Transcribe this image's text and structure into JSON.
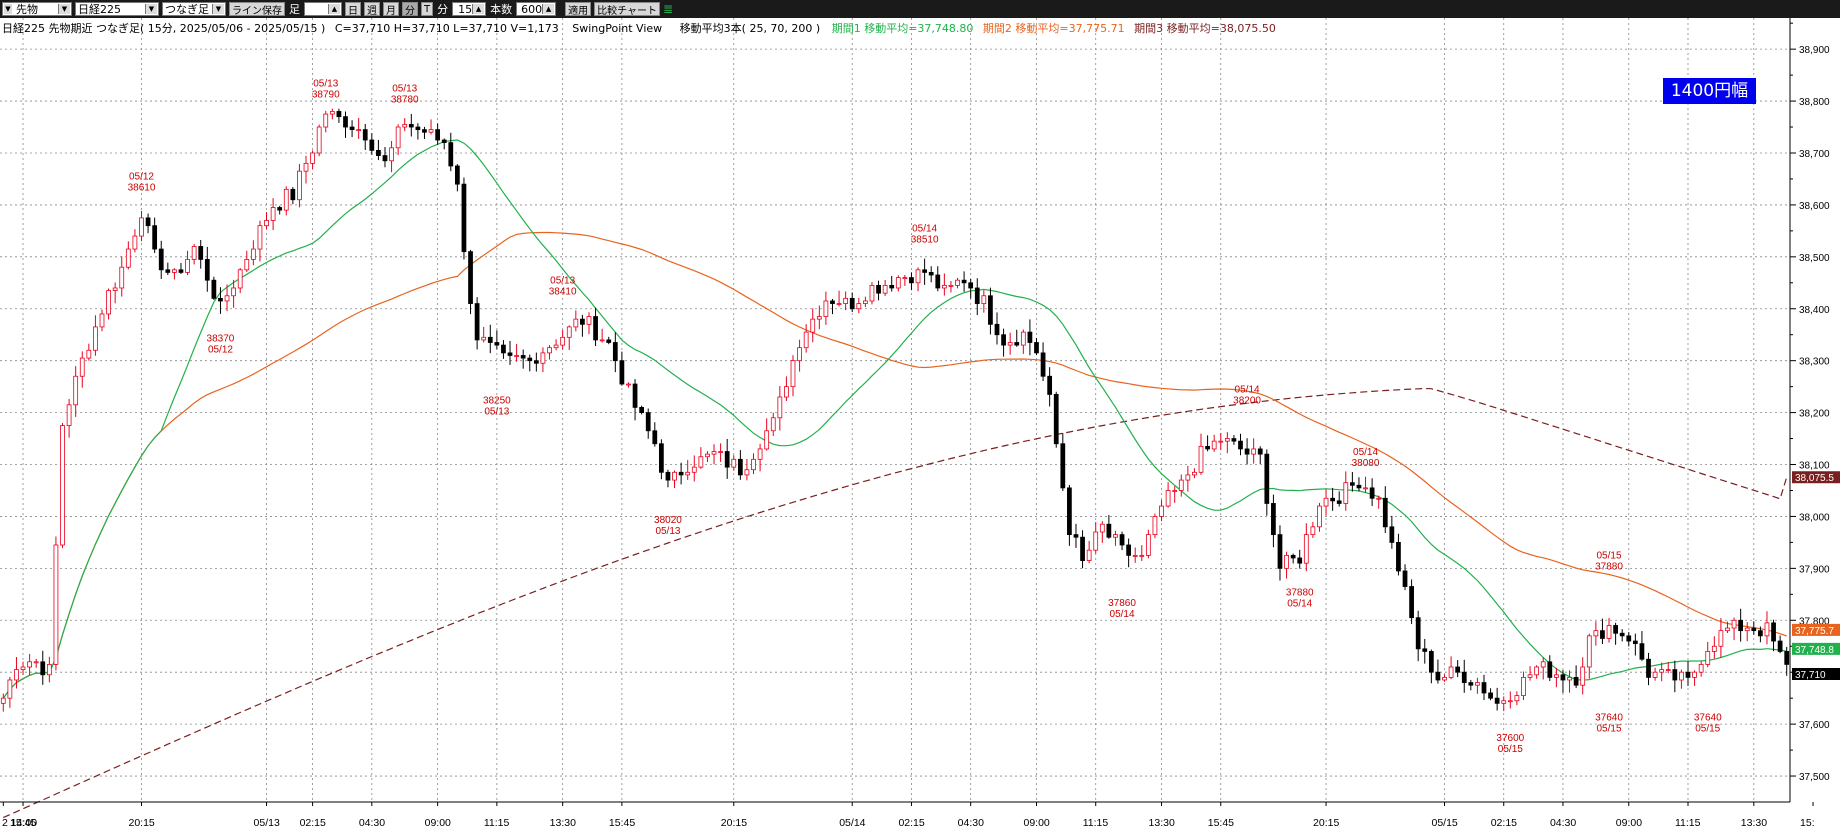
{
  "toolbar": {
    "market_select": "先物",
    "index_select": "日経225",
    "chart_type_select": "つなぎ足",
    "save_line_button": "ライン保存",
    "foot_label": "足",
    "day_button": "日",
    "week_button": "週",
    "month_button": "月",
    "minute_button": "分",
    "tick_button": "T",
    "interval_value": "15",
    "minute_label": "分",
    "count_label": "本数",
    "count_value": "600",
    "apply_button": "適用",
    "compare_button": "比較チャート"
  },
  "info": {
    "instrument": "日経225 先物期近 つなぎ足( 15分, 2025/05/06 - 2025/05/15 )",
    "ohlcv": "C=37,710 H=37,710 L=37,710 V=1,173",
    "view_name": "SwingPoint View",
    "ma_header": "移動平均3本( 25, 70, 200 )",
    "ma1": "期間1 移動平均=37,748.80",
    "ma2": "期間2 移動平均=37,775.71",
    "ma3": "期間3 移動平均=38,075.50"
  },
  "range_badge": "1400円幅",
  "chart_data": {
    "type": "candlestick",
    "yrange": [
      37450,
      38960
    ],
    "y_ticks": [
      37500,
      37600,
      37700,
      37800,
      37900,
      38000,
      38100,
      38200,
      38300,
      38400,
      38500,
      38600,
      38700,
      38800,
      38900
    ],
    "y_tick_labels": [
      "37,500",
      "37,600",
      "37,700",
      "37,800",
      "37,900",
      "38,000",
      "38,100",
      "38,200",
      "38,300",
      "38,400",
      "38,500",
      "38,600",
      "38,700",
      "38,800",
      "38,900"
    ],
    "x_labels": [
      {
        "i": 0,
        "text": "2  14:00"
      },
      {
        "i": 3,
        "text": "15:45"
      },
      {
        "i": 21,
        "text": "20:15"
      },
      {
        "i": 40,
        "text": "05/13"
      },
      {
        "i": 47,
        "text": "02:15"
      },
      {
        "i": 56,
        "text": "04:30"
      },
      {
        "i": 66,
        "text": "09:00"
      },
      {
        "i": 75,
        "text": "11:15"
      },
      {
        "i": 85,
        "text": "13:30"
      },
      {
        "i": 94,
        "text": "15:45"
      },
      {
        "i": 111,
        "text": "20:15"
      },
      {
        "i": 129,
        "text": "05/14"
      },
      {
        "i": 138,
        "text": "02:15"
      },
      {
        "i": 147,
        "text": "04:30"
      },
      {
        "i": 157,
        "text": "09:00"
      },
      {
        "i": 166,
        "text": "11:15"
      },
      {
        "i": 176,
        "text": "13:30"
      },
      {
        "i": 185,
        "text": "15:45"
      },
      {
        "i": 201,
        "text": "20:15"
      },
      {
        "i": 219,
        "text": "05/15"
      },
      {
        "i": 228,
        "text": "02:15"
      },
      {
        "i": 237,
        "text": "04:30"
      },
      {
        "i": 247,
        "text": "09:00"
      },
      {
        "i": 256,
        "text": "11:15"
      },
      {
        "i": 266,
        "text": "13:30"
      },
      {
        "i": 275,
        "text": "15:"
      }
    ],
    "anchors": [
      [
        0,
        37650
      ],
      [
        2,
        37720
      ],
      [
        5,
        37720
      ],
      [
        7,
        37700
      ],
      [
        9,
        38180
      ],
      [
        12,
        38300
      ],
      [
        15,
        38400
      ],
      [
        18,
        38480
      ],
      [
        21,
        38590
      ],
      [
        23,
        38500
      ],
      [
        26,
        38460
      ],
      [
        29,
        38520
      ],
      [
        33,
        38400
      ],
      [
        37,
        38500
      ],
      [
        41,
        38600
      ],
      [
        44,
        38620
      ],
      [
        47,
        38710
      ],
      [
        49,
        38780
      ],
      [
        52,
        38760
      ],
      [
        55,
        38740
      ],
      [
        58,
        38680
      ],
      [
        61,
        38760
      ],
      [
        64,
        38740
      ],
      [
        67,
        38720
      ],
      [
        69,
        38650
      ],
      [
        70,
        38500
      ],
      [
        72,
        38350
      ],
      [
        76,
        38300
      ],
      [
        80,
        38300
      ],
      [
        84,
        38340
      ],
      [
        88,
        38380
      ],
      [
        92,
        38330
      ],
      [
        96,
        38210
      ],
      [
        99,
        38140
      ],
      [
        101,
        38060
      ],
      [
        104,
        38100
      ],
      [
        108,
        38120
      ],
      [
        112,
        38090
      ],
      [
        117,
        38180
      ],
      [
        121,
        38340
      ],
      [
        125,
        38420
      ],
      [
        129,
        38410
      ],
      [
        132,
        38440
      ],
      [
        136,
        38460
      ],
      [
        140,
        38470
      ],
      [
        143,
        38430
      ],
      [
        146,
        38460
      ],
      [
        149,
        38410
      ],
      [
        152,
        38340
      ],
      [
        155,
        38350
      ],
      [
        157,
        38320
      ],
      [
        159,
        38220
      ],
      [
        162,
        37980
      ],
      [
        164,
        37910
      ],
      [
        167,
        37980
      ],
      [
        170,
        37930
      ],
      [
        173,
        37920
      ],
      [
        176,
        38020
      ],
      [
        179,
        38060
      ],
      [
        182,
        38120
      ],
      [
        185,
        38150
      ],
      [
        188,
        38130
      ],
      [
        191,
        38110
      ],
      [
        194,
        37900
      ],
      [
        197,
        37920
      ],
      [
        200,
        38030
      ],
      [
        203,
        38040
      ],
      [
        206,
        38070
      ],
      [
        209,
        38030
      ],
      [
        212,
        37900
      ],
      [
        215,
        37750
      ],
      [
        218,
        37690
      ],
      [
        221,
        37700
      ],
      [
        224,
        37680
      ],
      [
        227,
        37640
      ],
      [
        230,
        37670
      ],
      [
        233,
        37710
      ],
      [
        236,
        37700
      ],
      [
        239,
        37690
      ],
      [
        241,
        37760
      ],
      [
        244,
        37790
      ],
      [
        247,
        37770
      ],
      [
        250,
        37700
      ],
      [
        253,
        37690
      ],
      [
        256,
        37680
      ],
      [
        259,
        37750
      ],
      [
        262,
        37780
      ],
      [
        265,
        37790
      ],
      [
        268,
        37780
      ],
      [
        270,
        37730
      ],
      [
        271,
        37710
      ]
    ],
    "swing_labels": [
      {
        "i": 21,
        "price": "38610",
        "date": "05/12",
        "pos": "above"
      },
      {
        "i": 33,
        "price": "38370",
        "date": "05/12",
        "pos": "below"
      },
      {
        "i": 49,
        "price": "38790",
        "date": "05/13",
        "pos": "above"
      },
      {
        "i": 61,
        "price": "38780",
        "date": "05/13",
        "pos": "above"
      },
      {
        "i": 75,
        "price": "38250",
        "date": "05/13",
        "pos": "below"
      },
      {
        "i": 85,
        "price": "38410",
        "date": "05/13",
        "pos": "above"
      },
      {
        "i": 101,
        "price": "38020",
        "date": "05/13",
        "pos": "below"
      },
      {
        "i": 140,
        "price": "38510",
        "date": "05/14",
        "pos": "above"
      },
      {
        "i": 170,
        "price": "37860",
        "date": "05/14",
        "pos": "below"
      },
      {
        "i": 189,
        "price": "38200",
        "date": "05/14",
        "pos": "above"
      },
      {
        "i": 197,
        "price": "37880",
        "date": "05/14",
        "pos": "below"
      },
      {
        "i": 207,
        "price": "38080",
        "date": "05/14",
        "pos": "above"
      },
      {
        "i": 229,
        "price": "37600",
        "date": "05/15",
        "pos": "below"
      },
      {
        "i": 244,
        "price": "37880",
        "date": "05/15",
        "pos": "above"
      },
      {
        "i": 244,
        "price": "37640",
        "date": "05/15",
        "pos": "below"
      },
      {
        "i": 259,
        "price": "37640",
        "date": "05/15",
        "pos": "below"
      }
    ],
    "price_tags": [
      {
        "label": "38,075.5",
        "value": 38075.5,
        "color": "#7a1f1f",
        "text_color": "#ffffff"
      },
      {
        "label": "37,775.7",
        "value": 37775.7,
        "color": "#e8641e",
        "text_color": "#ffffff"
      },
      {
        "label": "37,748.8",
        "value": 37748.8,
        "color": "#21b14b",
        "text_color": "#ffffff"
      },
      {
        "label": "37,710",
        "value": 37710,
        "color": "#000000",
        "text_color": "#ffffff"
      }
    ],
    "colors": {
      "up": "#e8001c",
      "down": "#000000",
      "ma25": "#21b14b",
      "ma70": "#e8641e",
      "ma200": "#7a1f1f",
      "grid": "#888888",
      "label": "#cc0000"
    },
    "ma_periods": [
      25,
      70,
      200
    ],
    "grid": true
  }
}
